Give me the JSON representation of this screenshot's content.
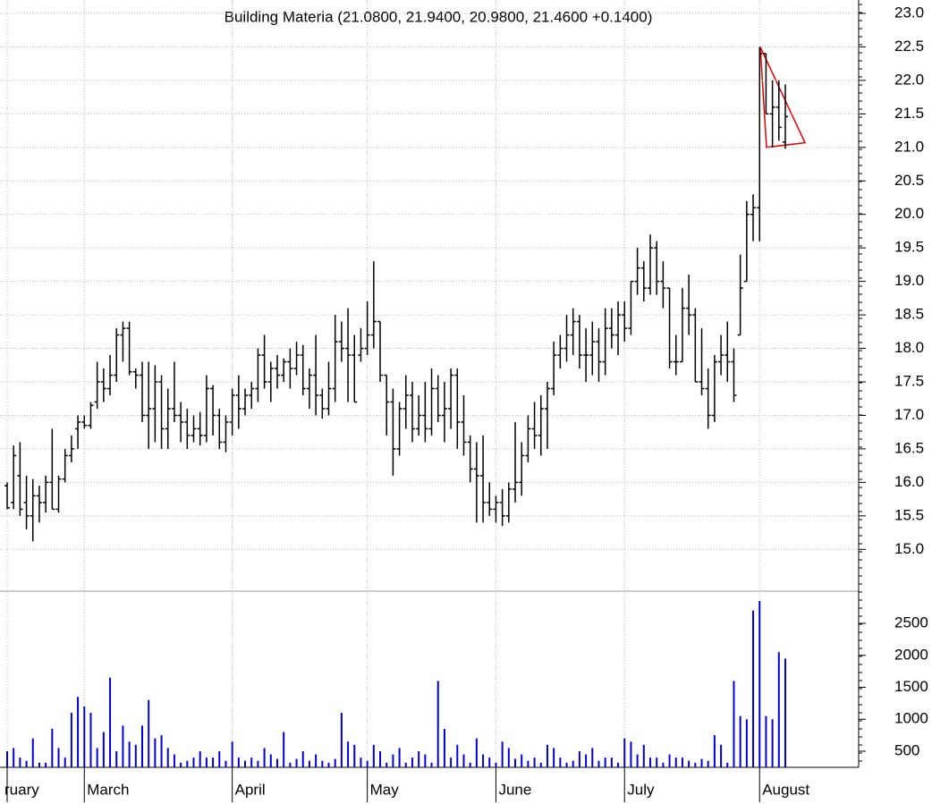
{
  "chart_data": {
    "type": "ohlc",
    "title": "Building Materia (21.0800, 21.9400, 20.9800, 21.4600 +0.1400)",
    "categories": [
      "ruary",
      null,
      null,
      null,
      null,
      null,
      null,
      null,
      null,
      null,
      null,
      null,
      "March",
      null,
      null,
      null,
      null,
      null,
      null,
      null,
      null,
      null,
      null,
      null,
      null,
      null,
      null,
      null,
      null,
      null,
      null,
      null,
      null,
      null,
      null,
      "April",
      null,
      null,
      null,
      null,
      null,
      null,
      null,
      null,
      null,
      null,
      null,
      null,
      null,
      null,
      null,
      null,
      null,
      null,
      null,
      null,
      "May",
      null,
      null,
      null,
      null,
      null,
      null,
      null,
      null,
      null,
      null,
      null,
      null,
      null,
      null,
      null,
      null,
      null,
      null,
      null,
      "June",
      null,
      null,
      null,
      null,
      null,
      null,
      null,
      null,
      null,
      null,
      null,
      null,
      null,
      null,
      null,
      null,
      null,
      null,
      null,
      "July",
      null,
      null,
      null,
      null,
      null,
      null,
      null,
      null,
      null,
      null,
      null,
      null,
      null,
      null,
      null,
      null,
      null,
      null,
      null,
      null,
      "August",
      null,
      null,
      null,
      null
    ],
    "ohlc": [
      [
        15.95,
        16.0,
        15.6,
        15.62
      ],
      [
        15.7,
        16.55,
        15.6,
        16.4
      ],
      [
        16.1,
        16.6,
        15.5,
        15.6
      ],
      [
        15.7,
        16.1,
        15.3,
        15.5
      ],
      [
        15.5,
        16.05,
        15.12,
        15.8
      ],
      [
        15.8,
        15.95,
        15.4,
        15.7
      ],
      [
        15.7,
        16.1,
        15.55,
        16.0
      ],
      [
        16.0,
        16.8,
        15.6,
        15.6
      ],
      [
        15.6,
        16.1,
        15.55,
        16.05
      ],
      [
        16.05,
        16.5,
        16.0,
        16.4
      ],
      [
        16.4,
        16.7,
        16.3,
        16.5
      ],
      [
        16.8,
        17.0,
        16.5,
        16.9
      ],
      [
        16.9,
        17.0,
        16.8,
        16.85
      ],
      [
        16.85,
        17.2,
        16.8,
        17.15
      ],
      [
        17.2,
        17.8,
        17.1,
        17.5
      ],
      [
        17.5,
        17.7,
        17.2,
        17.4
      ],
      [
        17.4,
        17.9,
        17.3,
        17.6
      ],
      [
        17.6,
        18.3,
        17.5,
        18.2
      ],
      [
        18.2,
        18.4,
        17.8,
        18.3
      ],
      [
        18.3,
        18.4,
        17.6,
        17.65
      ],
      [
        17.65,
        17.7,
        17.4,
        17.6
      ],
      [
        17.6,
        17.8,
        16.9,
        17.0
      ],
      [
        17.0,
        17.8,
        16.5,
        17.1
      ],
      [
        17.1,
        17.75,
        16.6,
        17.5
      ],
      [
        17.5,
        17.6,
        16.5,
        16.8
      ],
      [
        16.8,
        17.4,
        16.5,
        17.1
      ],
      [
        17.1,
        17.8,
        16.9,
        17.0
      ],
      [
        17.0,
        17.2,
        16.6,
        16.9
      ],
      [
        16.9,
        17.1,
        16.5,
        16.7
      ],
      [
        16.7,
        17.0,
        16.6,
        16.8
      ],
      [
        16.8,
        17.05,
        16.55,
        16.7
      ],
      [
        16.7,
        17.6,
        16.6,
        17.4
      ],
      [
        17.4,
        17.45,
        16.7,
        17.0
      ],
      [
        17.0,
        17.1,
        16.5,
        16.6
      ],
      [
        16.6,
        17.0,
        16.45,
        16.9
      ],
      [
        16.9,
        17.4,
        16.7,
        17.3
      ],
      [
        17.3,
        17.6,
        16.8,
        17.1
      ],
      [
        17.1,
        17.4,
        17.0,
        17.3
      ],
      [
        17.3,
        17.5,
        17.1,
        17.4
      ],
      [
        17.4,
        18.0,
        17.2,
        17.9
      ],
      [
        17.9,
        18.2,
        17.4,
        17.5
      ],
      [
        17.5,
        17.8,
        17.2,
        17.7
      ],
      [
        17.7,
        17.9,
        17.4,
        17.6
      ],
      [
        17.6,
        17.85,
        17.5,
        17.8
      ],
      [
        17.8,
        18.0,
        17.4,
        17.7
      ],
      [
        17.7,
        18.1,
        17.6,
        17.9
      ],
      [
        17.9,
        18.05,
        17.3,
        17.4
      ],
      [
        17.4,
        17.7,
        17.1,
        17.6
      ],
      [
        17.6,
        18.2,
        17.0,
        17.3
      ],
      [
        17.3,
        17.4,
        16.95,
        17.1
      ],
      [
        17.1,
        17.8,
        17.0,
        17.4
      ],
      [
        17.4,
        18.5,
        17.2,
        18.1
      ],
      [
        18.1,
        18.4,
        17.8,
        18.0
      ],
      [
        18.0,
        18.6,
        17.2,
        17.9
      ],
      [
        17.9,
        18.2,
        17.2,
        17.2
      ],
      [
        17.9,
        18.3,
        17.8,
        18.0
      ],
      [
        18.0,
        18.7,
        17.9,
        18.2
      ],
      [
        18.2,
        19.3,
        18.0,
        18.4
      ],
      [
        18.4,
        18.4,
        17.5,
        17.6
      ],
      [
        17.6,
        17.6,
        16.7,
        17.2
      ],
      [
        17.2,
        17.4,
        16.1,
        16.5
      ],
      [
        16.5,
        17.2,
        16.4,
        17.1
      ],
      [
        17.1,
        17.6,
        16.8,
        17.3
      ],
      [
        17.3,
        17.5,
        16.6,
        16.8
      ],
      [
        16.8,
        17.3,
        16.7,
        17.0
      ],
      [
        17.0,
        17.5,
        16.6,
        16.8
      ],
      [
        16.8,
        17.7,
        16.7,
        17.4
      ],
      [
        17.4,
        17.6,
        16.9,
        17.0
      ],
      [
        17.0,
        17.5,
        16.6,
        17.1
      ],
      [
        17.1,
        17.7,
        16.8,
        17.6
      ],
      [
        17.6,
        17.7,
        16.5,
        16.9
      ],
      [
        16.9,
        17.3,
        16.4,
        16.6
      ],
      [
        16.6,
        16.7,
        16.0,
        16.2
      ],
      [
        16.2,
        16.6,
        15.4,
        16.1
      ],
      [
        16.1,
        16.7,
        15.4,
        15.7
      ],
      [
        15.7,
        16.0,
        15.5,
        15.6
      ],
      [
        15.6,
        15.8,
        15.4,
        15.7
      ],
      [
        15.7,
        15.9,
        15.35,
        15.5
      ],
      [
        15.5,
        16.0,
        15.4,
        15.9
      ],
      [
        15.9,
        16.9,
        15.7,
        16.0
      ],
      [
        16.0,
        16.6,
        15.8,
        16.4
      ],
      [
        16.4,
        17.0,
        16.3,
        16.8
      ],
      [
        16.8,
        17.2,
        16.5,
        16.7
      ],
      [
        16.7,
        17.3,
        16.4,
        17.1
      ],
      [
        17.1,
        17.5,
        16.5,
        17.4
      ],
      [
        17.4,
        18.1,
        17.3,
        17.9
      ],
      [
        17.9,
        18.2,
        17.7,
        18.0
      ],
      [
        18.0,
        18.5,
        17.8,
        18.2
      ],
      [
        18.2,
        18.6,
        17.9,
        18.4
      ],
      [
        18.4,
        18.5,
        17.7,
        17.9
      ],
      [
        17.9,
        18.3,
        17.5,
        17.9
      ],
      [
        17.9,
        18.4,
        17.6,
        18.1
      ],
      [
        18.1,
        18.3,
        17.5,
        17.8
      ],
      [
        17.8,
        18.6,
        17.6,
        18.3
      ],
      [
        18.3,
        18.6,
        18.0,
        18.2
      ],
      [
        18.2,
        18.7,
        17.9,
        18.5
      ],
      [
        18.5,
        18.7,
        18.1,
        18.3
      ],
      [
        18.3,
        19.0,
        18.2,
        19.0
      ],
      [
        19.0,
        19.5,
        18.8,
        19.2
      ],
      [
        19.2,
        19.3,
        18.7,
        18.9
      ],
      [
        18.9,
        19.7,
        18.8,
        19.5
      ],
      [
        19.5,
        19.6,
        18.8,
        19.0
      ],
      [
        19.0,
        19.3,
        18.6,
        18.9
      ],
      [
        18.9,
        18.9,
        17.7,
        17.8
      ],
      [
        17.8,
        18.2,
        17.6,
        17.8
      ],
      [
        17.8,
        18.9,
        17.8,
        18.6
      ],
      [
        18.6,
        19.1,
        18.2,
        18.5
      ],
      [
        18.5,
        18.6,
        17.5,
        17.5
      ],
      [
        17.5,
        18.3,
        17.3,
        17.4
      ],
      [
        17.4,
        17.7,
        16.8,
        17.0
      ],
      [
        17.0,
        17.9,
        16.9,
        17.8
      ],
      [
        17.8,
        18.2,
        17.6,
        17.9
      ],
      [
        17.9,
        18.4,
        17.5,
        17.8
      ],
      [
        17.8,
        18.0,
        17.2,
        17.3
      ],
      [
        18.2,
        19.4,
        18.2,
        18.9
      ],
      [
        19.0,
        20.2,
        19.0,
        20.0
      ],
      [
        20.0,
        20.3,
        19.6,
        20.1
      ],
      [
        20.1,
        22.5,
        19.6,
        22.4
      ],
      [
        22.4,
        22.4,
        21.5,
        21.5
      ],
      [
        21.5,
        22.0,
        21.0,
        21.6
      ],
      [
        21.6,
        22.0,
        21.1,
        21.3
      ],
      [
        21.08,
        21.94,
        20.98,
        21.46
      ]
    ],
    "ylim": [
      14.39,
      23.2
    ],
    "yticks": [
      {
        "value": 15,
        "label": "15.0"
      },
      15.5,
      {
        "value": 16,
        "label": "16.0"
      },
      16.5,
      {
        "value": 17,
        "label": "17.0"
      },
      17.5,
      {
        "value": 18,
        "label": "18.0"
      },
      18.5,
      {
        "value": 19,
        "label": "19.0"
      },
      19.5,
      {
        "value": 20,
        "label": "20.0"
      },
      20.5,
      {
        "value": 21,
        "label": "21.0"
      },
      21.5,
      {
        "value": 22,
        "label": "22.0"
      },
      22.5,
      {
        "value": 23,
        "label": "23.0"
      }
    ],
    "volume": {
      "color": "#0000dd",
      "values": [
        500,
        550,
        400,
        350,
        700,
        320,
        320,
        850,
        550,
        400,
        1100,
        1350,
        1200,
        1100,
        550,
        800,
        1650,
        500,
        900,
        650,
        600,
        900,
        1300,
        700,
        750,
        550,
        450,
        320,
        350,
        400,
        500,
        400,
        400,
        500,
        350,
        650,
        400,
        350,
        400,
        350,
        550,
        450,
        380,
        800,
        320,
        380,
        500,
        350,
        450,
        350,
        320,
        380,
        1100,
        650,
        600,
        400,
        350,
        600,
        500,
        320,
        450,
        550,
        320,
        400,
        500,
        450,
        320,
        1600,
        850,
        400,
        600,
        450,
        320,
        700,
        450,
        400,
        320,
        650,
        550,
        380,
        450,
        350,
        400,
        320,
        600,
        550,
        400,
        320,
        350,
        500,
        450,
        550,
        350,
        400,
        400,
        320,
        700,
        650,
        450,
        600,
        400,
        400,
        320,
        450,
        400,
        400,
        350,
        320,
        380,
        350,
        750,
        600,
        320,
        1600,
        1050,
        1000,
        2700,
        2850,
        1050,
        1000,
        2050,
        1950
      ],
      "ylim": [
        248,
        2990
      ],
      "yticks": [
        500,
        1000,
        1500,
        2000,
        2500
      ]
    },
    "color": "#000000",
    "grid": true
  }
}
